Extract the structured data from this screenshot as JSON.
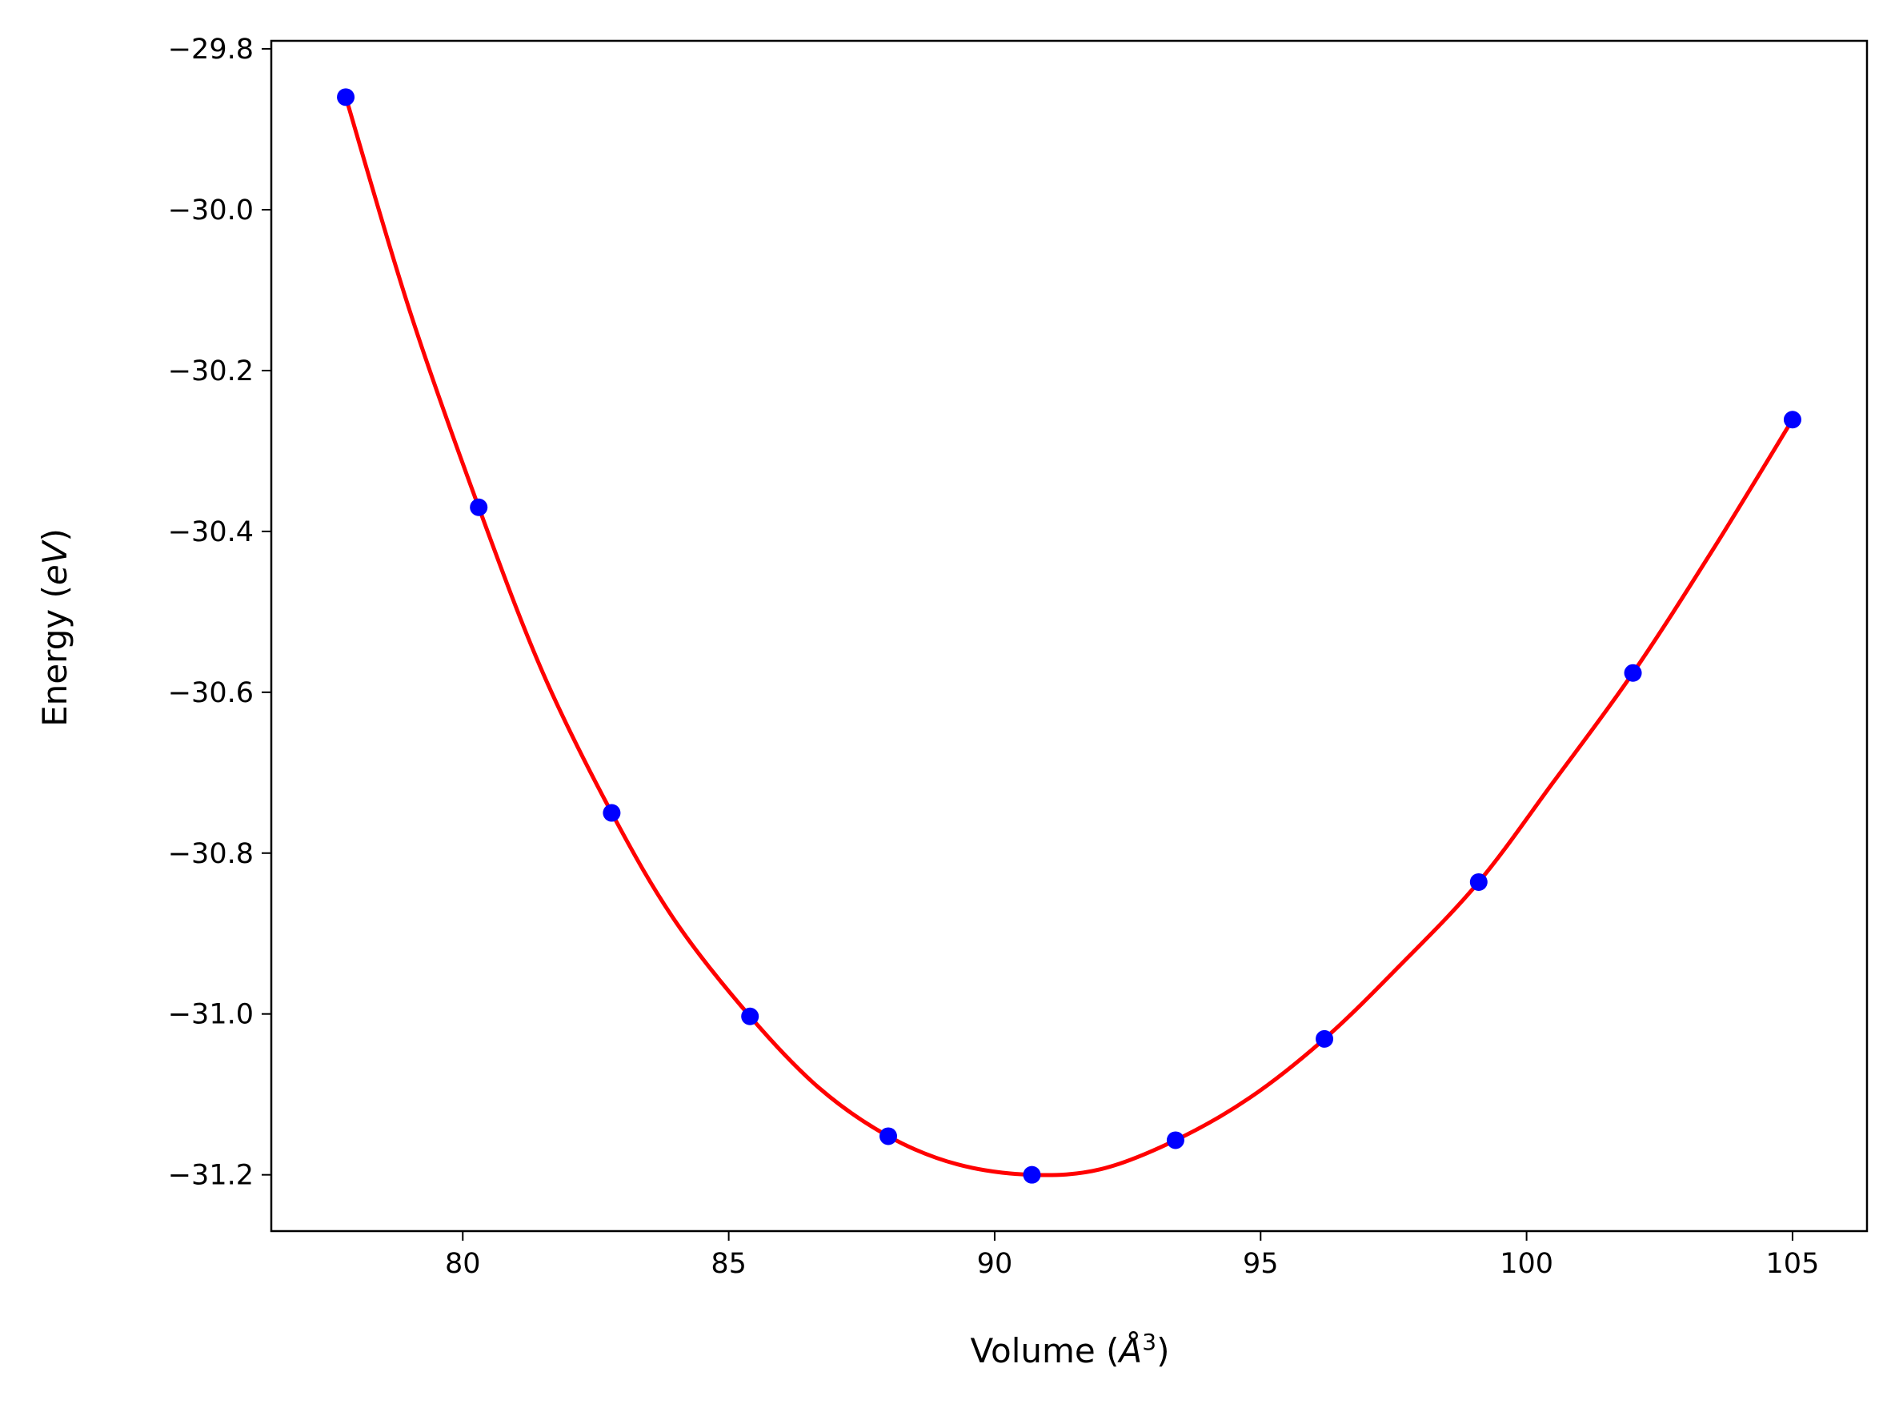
{
  "chart_data": {
    "type": "scatter",
    "xlabel": "Volume (Å³)",
    "ylabel": "Energy (eV)",
    "xlabel_parts": {
      "prefix": "Volume (",
      "unit": "Å",
      "sup": "3",
      "suffix": ")"
    },
    "ylabel_parts": {
      "prefix": "Energy (",
      "unit": "eV",
      "suffix": ")"
    },
    "xlim": [
      76.4,
      106.4
    ],
    "ylim": [
      -31.27,
      -29.79
    ],
    "xticks": [
      80,
      85,
      90,
      95,
      100,
      105
    ],
    "xtick_labels": [
      "80",
      "85",
      "90",
      "95",
      "100",
      "105"
    ],
    "yticks": [
      -31.2,
      -31.0,
      -30.8,
      -30.6,
      -30.4,
      -30.2,
      -30.0,
      -29.8
    ],
    "ytick_labels": [
      "−31.2",
      "−31.0",
      "−30.8",
      "−30.6",
      "−30.4",
      "−30.2",
      "−30.0",
      "−29.8"
    ],
    "grid": false,
    "series": [
      {
        "kind": "points",
        "color": "#0000ff",
        "x": [
          77.8,
          80.3,
          82.8,
          85.4,
          88.0,
          90.7,
          93.4,
          96.2,
          99.1,
          102.0,
          105.0
        ],
        "y": [
          -29.86,
          -30.37,
          -30.75,
          -31.003,
          -31.152,
          -31.2,
          -31.157,
          -31.031,
          -30.836,
          -30.576,
          -30.261
        ]
      },
      {
        "kind": "line",
        "color": "#ff0000",
        "x": [
          77.8,
          79.0,
          80.3,
          81.5,
          82.8,
          84.0,
          85.4,
          86.7,
          88.0,
          89.3,
          90.7,
          92.0,
          93.4,
          94.8,
          96.2,
          97.6,
          99.1,
          100.5,
          102.0,
          103.5,
          105.0
        ],
        "y": [
          -29.86,
          -30.125,
          -30.37,
          -30.575,
          -30.75,
          -30.885,
          -31.003,
          -31.092,
          -31.152,
          -31.187,
          -31.2,
          -31.193,
          -31.157,
          -31.104,
          -31.031,
          -30.941,
          -30.836,
          -30.712,
          -30.576,
          -30.423,
          -30.261
        ]
      }
    ]
  }
}
